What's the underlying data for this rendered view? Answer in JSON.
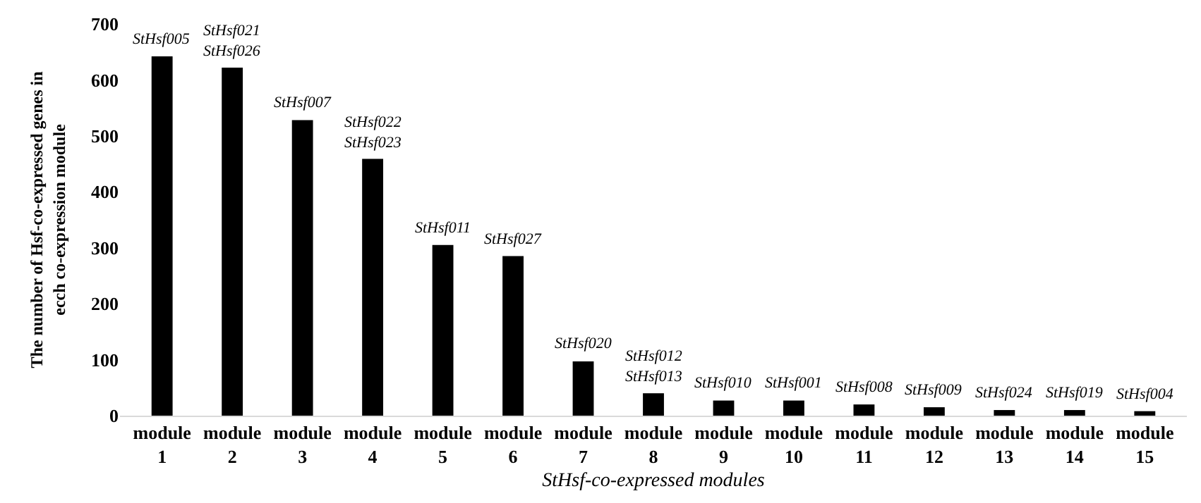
{
  "chart_data": {
    "type": "bar",
    "ylabel": "The number of Hsf-co-expressed genes in ecch co-expression module",
    "xlabel": "StHsf-co-expressed modules",
    "categories": [
      "module 1",
      "module 2",
      "module 3",
      "module 4",
      "module 5",
      "module 6",
      "module 7",
      "module 8",
      "module 9",
      "module 10",
      "module 11",
      "module 12",
      "module 13",
      "module 14",
      "module 15"
    ],
    "values": [
      642,
      622,
      528,
      459,
      305,
      285,
      97,
      40,
      27,
      27,
      20,
      15,
      10,
      10,
      8
    ],
    "color": "#000000",
    "ylim": [
      0,
      700
    ],
    "yticks": [
      0,
      100,
      200,
      300,
      400,
      500,
      600,
      700
    ],
    "annotations": [
      {
        "text": "StHsf005",
        "x": "module 1",
        "y": 642
      },
      {
        "text": "StHsf021\nStHsf026",
        "x": "module 2",
        "y": 622
      },
      {
        "text": "StHsf007",
        "x": "module 3",
        "y": 528
      },
      {
        "text": "StHsf022\nStHsf023",
        "x": "module 4",
        "y": 459
      },
      {
        "text": "StHsf011",
        "x": "module 5",
        "y": 305
      },
      {
        "text": "StHsf027",
        "x": "module 6",
        "y": 285
      },
      {
        "text": "StHsf020",
        "x": "module 7",
        "y": 97
      },
      {
        "text": "StHsf012\nStHsf013",
        "x": "module 8",
        "y": 40
      },
      {
        "text": "StHsf010",
        "x": "module 9",
        "y": 27
      },
      {
        "text": "StHsf001",
        "x": "module 10",
        "y": 27
      },
      {
        "text": "StHsf008",
        "x": "module 11",
        "y": 20
      },
      {
        "text": "StHsf009",
        "x": "module 12",
        "y": 15
      },
      {
        "text": "StHsf024",
        "x": "module 13",
        "y": 10
      },
      {
        "text": "StHsf019",
        "x": "module 14",
        "y": 10
      },
      {
        "text": "StHsf004",
        "x": "module 15",
        "y": 8
      }
    ]
  }
}
